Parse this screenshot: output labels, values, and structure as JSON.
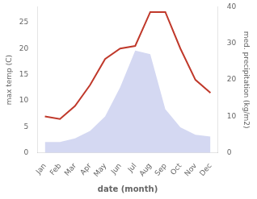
{
  "chart_data": {
    "type": "line",
    "categories": [
      "Jan",
      "Feb",
      "Mar",
      "Apr",
      "May",
      "Jun",
      "Jul",
      "Aug",
      "Sep",
      "Oct",
      "Nov",
      "Dec"
    ],
    "series": [
      {
        "type": "area",
        "axis": "y2",
        "color": "#b0b8e8",
        "values": [
          3.0,
          3.0,
          4.0,
          6.0,
          10.0,
          18.0,
          28.0,
          27.0,
          12.0,
          7.0,
          5.0,
          4.5
        ]
      },
      {
        "type": "line",
        "color": "#c0392b",
        "values": [
          7.0,
          6.5,
          9.0,
          13.0,
          18.0,
          20.0,
          20.5,
          27.0,
          27.0,
          20.0,
          14.0,
          11.5
        ]
      }
    ],
    "xlabel": "date (month)",
    "ylabel": "max temp (C)",
    "y2label": "med. precipitation (kg/m2)",
    "ylim": [
      0,
      28
    ],
    "yticks": [
      0,
      5,
      10,
      15,
      20,
      25
    ],
    "y2lim": [
      0,
      40
    ],
    "y2ticks": [
      0,
      10,
      20,
      30,
      40
    ],
    "grid": false
  }
}
